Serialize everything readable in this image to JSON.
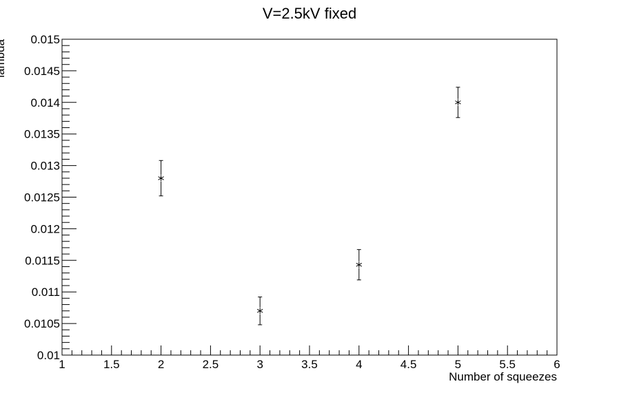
{
  "chart_data": {
    "type": "scatter",
    "title": "V=2.5kV fixed",
    "xlabel": "Number of squeezes",
    "ylabel": "lambda",
    "xlim": [
      1,
      6
    ],
    "ylim": [
      0.01,
      0.015
    ],
    "x_tick_labels": [
      "1",
      "1.5",
      "2",
      "2.5",
      "3",
      "3.5",
      "4",
      "4.5",
      "5",
      "5.5",
      "6"
    ],
    "y_tick_labels": [
      "0.01",
      "0.0105",
      "0.011",
      "0.0115",
      "0.012",
      "0.0125",
      "0.013",
      "0.0135",
      "0.014",
      "0.0145",
      "0.015"
    ],
    "grid": false,
    "marker": "asterisk",
    "points": [
      {
        "x": 2,
        "y": 0.0128,
        "yerr": 0.00028
      },
      {
        "x": 3,
        "y": 0.0107,
        "yerr": 0.00022
      },
      {
        "x": 4,
        "y": 0.01143,
        "yerr": 0.00024
      },
      {
        "x": 5,
        "y": 0.014,
        "yerr": 0.00024
      }
    ]
  }
}
